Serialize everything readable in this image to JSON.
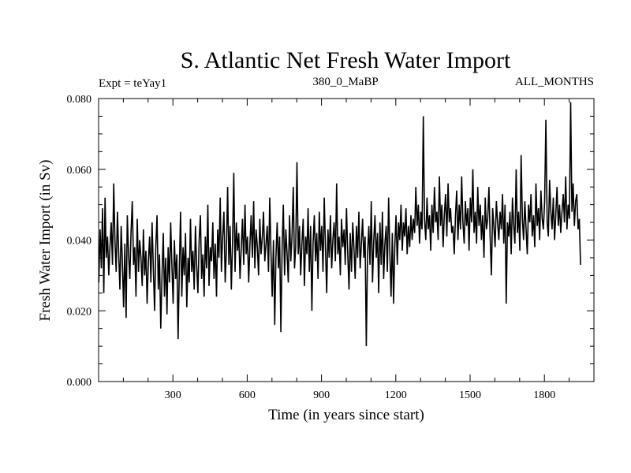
{
  "chart_data": {
    "type": "line",
    "title": "S. Atlantic Net Fresh Water Import",
    "subtitle_left": "Expt = teYay1",
    "subtitle_center": "380_0_MaBP",
    "subtitle_right": "ALL_MONTHS",
    "xlabel": "Time (in years since start)",
    "ylabel": "Fresh Water Import (in Sv)",
    "xlim": [
      0,
      2000
    ],
    "ylim": [
      0.0,
      0.08
    ],
    "x_ticks": [
      300,
      600,
      900,
      1200,
      1500,
      1800
    ],
    "x_tick_labels": [
      "300",
      "600",
      "900",
      "1200",
      "1500",
      "1800"
    ],
    "y_ticks": [
      0.0,
      0.02,
      0.04,
      0.06,
      0.08
    ],
    "y_tick_labels": [
      "0.000",
      "0.020",
      "0.040",
      "0.060",
      "0.080"
    ],
    "grid": false,
    "series": [
      {
        "name": "fresh_water_import",
        "color": "#000000",
        "x_start": 1,
        "x_step": 5,
        "values": [
          0.028,
          0.043,
          0.032,
          0.049,
          0.025,
          0.052,
          0.035,
          0.041,
          0.03,
          0.038,
          0.045,
          0.033,
          0.056,
          0.04,
          0.031,
          0.048,
          0.037,
          0.026,
          0.044,
          0.034,
          0.021,
          0.039,
          0.018,
          0.047,
          0.036,
          0.029,
          0.042,
          0.051,
          0.033,
          0.038,
          0.024,
          0.046,
          0.031,
          0.04,
          0.035,
          0.027,
          0.043,
          0.03,
          0.037,
          0.022,
          0.034,
          0.041,
          0.028,
          0.045,
          0.032,
          0.02,
          0.038,
          0.047,
          0.026,
          0.036,
          0.015,
          0.03,
          0.042,
          0.024,
          0.035,
          0.019,
          0.038,
          0.028,
          0.045,
          0.033,
          0.022,
          0.04,
          0.029,
          0.036,
          0.012,
          0.032,
          0.048,
          0.024,
          0.038,
          0.03,
          0.042,
          0.021,
          0.035,
          0.028,
          0.046,
          0.031,
          0.037,
          0.026,
          0.044,
          0.033,
          0.025,
          0.04,
          0.047,
          0.029,
          0.036,
          0.024,
          0.041,
          0.032,
          0.05,
          0.027,
          0.038,
          0.034,
          0.045,
          0.029,
          0.039,
          0.024,
          0.043,
          0.035,
          0.052,
          0.031,
          0.041,
          0.048,
          0.028,
          0.037,
          0.055,
          0.033,
          0.044,
          0.026,
          0.04,
          0.059,
          0.031,
          0.045,
          0.037,
          0.042,
          0.029,
          0.038,
          0.046,
          0.033,
          0.05,
          0.036,
          0.041,
          0.028,
          0.039,
          0.047,
          0.035,
          0.051,
          0.032,
          0.043,
          0.038,
          0.03,
          0.046,
          0.036,
          0.041,
          0.048,
          0.034,
          0.039,
          0.044,
          0.031,
          0.052,
          0.037,
          0.024,
          0.04,
          0.016,
          0.035,
          0.045,
          0.032,
          0.041,
          0.014,
          0.038,
          0.05,
          0.03,
          0.043,
          0.036,
          0.028,
          0.047,
          0.034,
          0.041,
          0.055,
          0.032,
          0.038,
          0.062,
          0.036,
          0.044,
          0.03,
          0.039,
          0.046,
          0.027,
          0.041,
          0.036,
          0.049,
          0.031,
          0.044,
          0.02,
          0.039,
          0.047,
          0.034,
          0.042,
          0.029,
          0.048,
          0.037,
          0.044,
          0.031,
          0.052,
          0.038,
          0.025,
          0.043,
          0.035,
          0.047,
          0.032,
          0.04,
          0.045,
          0.034,
          0.056,
          0.036,
          0.041,
          0.03,
          0.046,
          0.038,
          0.043,
          0.033,
          0.049,
          0.036,
          0.026,
          0.042,
          0.031,
          0.045,
          0.038,
          0.029,
          0.044,
          0.035,
          0.048,
          0.032,
          0.039,
          0.046,
          0.035,
          0.041,
          0.01,
          0.036,
          0.044,
          0.033,
          0.051,
          0.028,
          0.04,
          0.047,
          0.035,
          0.042,
          0.025,
          0.045,
          0.033,
          0.048,
          0.029,
          0.039,
          0.044,
          0.031,
          0.052,
          0.036,
          0.024,
          0.042,
          0.022,
          0.038,
          0.047,
          0.033,
          0.045,
          0.04,
          0.05,
          0.037,
          0.045,
          0.041,
          0.049,
          0.036,
          0.044,
          0.038,
          0.047,
          0.04,
          0.046,
          0.042,
          0.055,
          0.044,
          0.05,
          0.039,
          0.048,
          0.043,
          0.075,
          0.046,
          0.04,
          0.052,
          0.043,
          0.047,
          0.037,
          0.05,
          0.042,
          0.055,
          0.045,
          0.048,
          0.04,
          0.058,
          0.044,
          0.05,
          0.038,
          0.047,
          0.053,
          0.041,
          0.056,
          0.045,
          0.049,
          0.042,
          0.044,
          0.036,
          0.047,
          0.054,
          0.04,
          0.05,
          0.043,
          0.058,
          0.045,
          0.039,
          0.051,
          0.044,
          0.049,
          0.037,
          0.052,
          0.045,
          0.06,
          0.042,
          0.048,
          0.039,
          0.055,
          0.044,
          0.05,
          0.04,
          0.047,
          0.035,
          0.052,
          0.043,
          0.046,
          0.055,
          0.041,
          0.03,
          0.049,
          0.044,
          0.038,
          0.051,
          0.045,
          0.04,
          0.048,
          0.043,
          0.053,
          0.039,
          0.05,
          0.022,
          0.045,
          0.041,
          0.048,
          0.036,
          0.052,
          0.044,
          0.039,
          0.06,
          0.042,
          0.048,
          0.037,
          0.064,
          0.046,
          0.04,
          0.051,
          0.043,
          0.036,
          0.05,
          0.045,
          0.053,
          0.041,
          0.047,
          0.038,
          0.056,
          0.044,
          0.049,
          0.04,
          0.054,
          0.046,
          0.043,
          0.051,
          0.074,
          0.045,
          0.041,
          0.057,
          0.048,
          0.043,
          0.052,
          0.04,
          0.047,
          0.055,
          0.044,
          0.05,
          0.042,
          0.048,
          0.053,
          0.045,
          0.058,
          0.043,
          0.05,
          0.046,
          0.079,
          0.048,
          0.056,
          0.044,
          0.051,
          0.053,
          0.043,
          0.046,
          0.033
        ]
      }
    ]
  }
}
